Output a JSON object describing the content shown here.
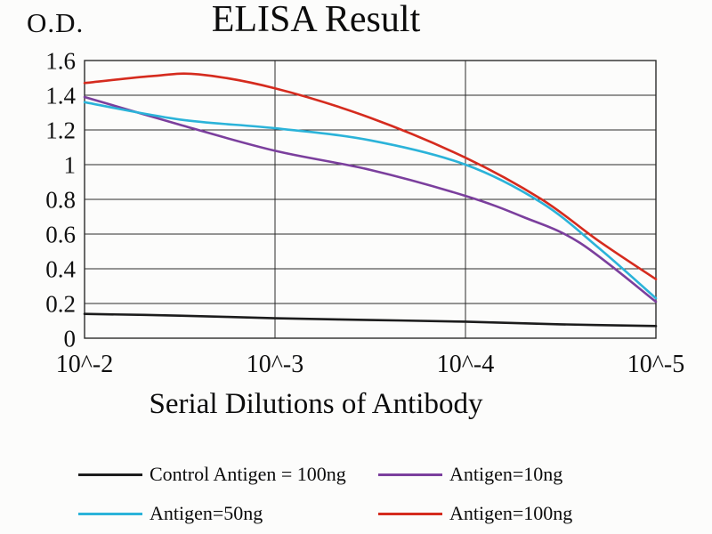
{
  "chart_data": {
    "type": "line",
    "title": "ELISA Result",
    "ylabel": "O.D.",
    "xlabel": "Serial Dilutions of Antibody",
    "x_tick_labels": [
      "10^-2",
      "10^-3",
      "10^-4",
      "10^-5"
    ],
    "y_tick_labels": [
      "0",
      "0.2",
      "0.4",
      "0.6",
      "0.8",
      "1",
      "1.2",
      "1.4",
      "1.6"
    ],
    "y_ticks": [
      0,
      0.2,
      0.4,
      0.6,
      0.8,
      1,
      1.2,
      1.4,
      1.6
    ],
    "ylim": [
      0,
      1.6
    ],
    "x_axis_note": "x positions are serial dilution steps, evenly spaced from 10^-2 to 10^-5",
    "grid": {
      "horizontal": true,
      "vertical_at": [
        1,
        2
      ],
      "border": true,
      "line_color": "#2b2b2b"
    },
    "legend_position": "bottom",
    "legend_rows": [
      [
        0,
        1
      ],
      [
        2,
        3
      ]
    ],
    "series": [
      {
        "name": "Control Antigen = 100ng",
        "color": "#1c1c1c",
        "x": [
          0,
          0.5,
          1,
          1.5,
          2,
          2.5,
          3
        ],
        "y": [
          0.14,
          0.13,
          0.115,
          0.105,
          0.095,
          0.08,
          0.07
        ]
      },
      {
        "name": "Antigen=10ng",
        "color": "#7b3f9d",
        "x": [
          0,
          0.5,
          1,
          1.5,
          2,
          2.3,
          2.6,
          3
        ],
        "y": [
          1.39,
          1.23,
          1.08,
          0.97,
          0.82,
          0.7,
          0.55,
          0.21
        ]
      },
      {
        "name": "Antigen=50ng",
        "color": "#2bb3d9",
        "x": [
          0,
          0.5,
          1,
          1.5,
          2,
          2.4,
          2.7,
          3
        ],
        "y": [
          1.36,
          1.26,
          1.21,
          1.14,
          1.0,
          0.78,
          0.52,
          0.23
        ]
      },
      {
        "name": "Antigen=100ng",
        "color": "#d52b1e",
        "x": [
          0,
          0.35,
          0.6,
          1,
          1.5,
          2,
          2.4,
          2.7,
          3
        ],
        "y": [
          1.47,
          1.51,
          1.52,
          1.44,
          1.27,
          1.04,
          0.8,
          0.56,
          0.34
        ]
      }
    ]
  }
}
